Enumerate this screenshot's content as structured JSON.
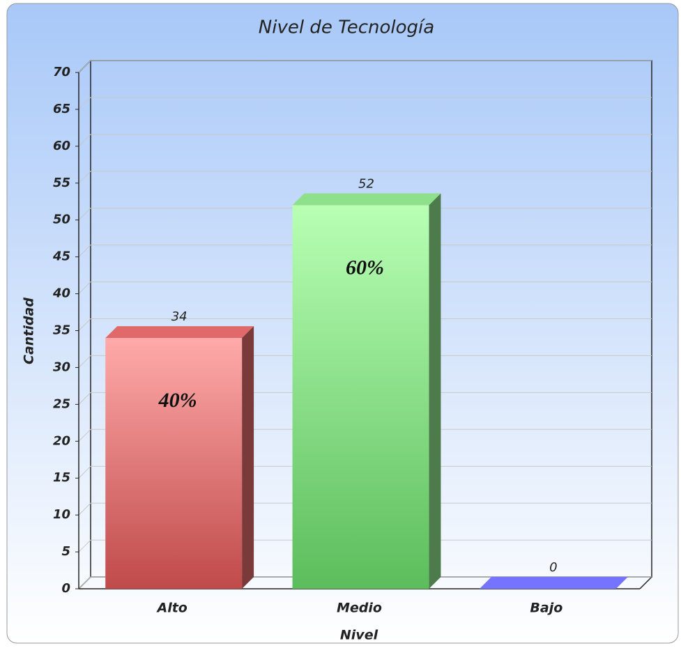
{
  "chart_data": {
    "type": "bar3d",
    "title": "Nivel de Tecnología",
    "categories": [
      "Alto",
      "Medio",
      "Bajo"
    ],
    "values": [
      34,
      52,
      0
    ],
    "percent_labels": [
      "40%",
      "60%",
      null
    ],
    "colors": [
      "#e06a6a",
      "#8ee08a",
      "#7474ff"
    ],
    "xlabel": "Nivel",
    "ylabel": "Cantidad",
    "ylim": [
      0,
      70
    ],
    "yticks": [
      0,
      5,
      10,
      15,
      20,
      25,
      30,
      35,
      40,
      45,
      50,
      55,
      60,
      65,
      70
    ],
    "grid": true
  }
}
